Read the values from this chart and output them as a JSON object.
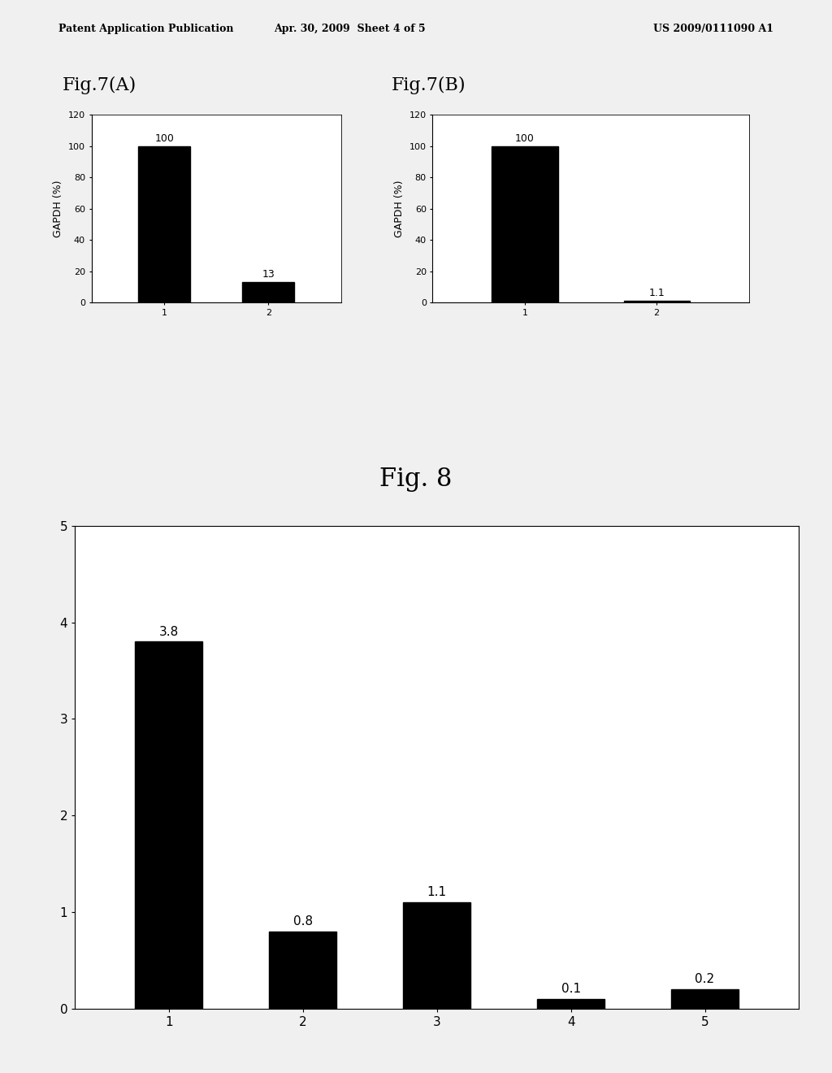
{
  "header_left": "Patent Application Publication",
  "header_center": "Apr. 30, 2009  Sheet 4 of 5",
  "header_right": "US 2009/0111090 A1",
  "fig7A": {
    "title": "Fig.7(A)",
    "categories": [
      1,
      2
    ],
    "values": [
      100,
      13
    ],
    "labels": [
      "100",
      "13"
    ],
    "ylabel": "GAPDH (%)",
    "ylim": [
      0,
      120
    ],
    "yticks": [
      0,
      20,
      40,
      60,
      80,
      100,
      120
    ],
    "bar_color": "#000000"
  },
  "fig7B": {
    "title": "Fig.7(B)",
    "categories": [
      1,
      2
    ],
    "values": [
      100,
      1.1
    ],
    "labels": [
      "100",
      "1.1"
    ],
    "ylabel": "GAPDH (%)",
    "ylim": [
      0,
      120
    ],
    "yticks": [
      0,
      20,
      40,
      60,
      80,
      100,
      120
    ],
    "bar_color": "#000000"
  },
  "fig8": {
    "title": "Fig. 8",
    "categories": [
      1,
      2,
      3,
      4,
      5
    ],
    "values": [
      3.8,
      0.8,
      1.1,
      0.1,
      0.2
    ],
    "labels": [
      "3.8",
      "0.8",
      "1.1",
      "0.1",
      "0.2"
    ],
    "ylim": [
      0,
      5
    ],
    "yticks": [
      0,
      1,
      2,
      3,
      4,
      5
    ],
    "bar_color": "#000000"
  },
  "background_color": "#f0f0f0",
  "bar_width": 0.5,
  "title_fontsize": 16,
  "label_fontsize": 9,
  "tick_fontsize": 8,
  "annotation_fontsize": 9,
  "header_fontsize": 9
}
